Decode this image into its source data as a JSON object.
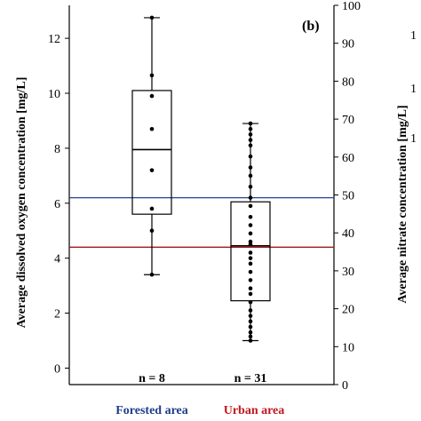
{
  "chart_data": {
    "type": "box",
    "panel_label": "(b)",
    "y_left": {
      "label": "Average dissolved oxygen concentration [mg/L]",
      "range": [
        -0.6,
        13.2
      ],
      "ticks": [
        0,
        2,
        4,
        6,
        8,
        10,
        12
      ]
    },
    "y_right": {
      "label": "Average nitrate concentration [mg/L]",
      "range": [
        0,
        100
      ],
      "ticks": [
        0,
        10,
        20,
        30,
        40,
        50,
        60,
        70,
        80,
        90,
        100
      ]
    },
    "categories": [
      {
        "name": "Forested area",
        "color": "#1f3c8c"
      },
      {
        "name": "Urban area",
        "color": "#c0171e"
      }
    ],
    "boxes": [
      {
        "category": "Forested area",
        "n_label": "n = 8",
        "whisker_low": 3.4,
        "q1": 5.6,
        "median": 7.95,
        "q3": 10.1,
        "whisker_high": 12.75,
        "points": [
          12.75,
          10.65,
          9.9,
          8.7,
          7.2,
          5.8,
          5.0,
          3.4
        ]
      },
      {
        "category": "Urban area",
        "n_label": "n = 31",
        "whisker_low": 1.0,
        "q1": 2.45,
        "median": 4.45,
        "q3": 6.05,
        "whisker_high": 8.9,
        "points": [
          8.9,
          8.7,
          8.5,
          8.3,
          8.1,
          7.7,
          7.3,
          7.0,
          6.6,
          6.2,
          5.9,
          5.5,
          5.2,
          4.9,
          4.6,
          4.5,
          4.2,
          4.0,
          3.8,
          3.5,
          3.2,
          2.9,
          2.7,
          2.4,
          2.1,
          1.9,
          1.7,
          1.5,
          1.3,
          1.15,
          1.0
        ]
      }
    ],
    "reference_lines": [
      {
        "axis": "left",
        "value": 6.2,
        "color": "#2a3f94"
      },
      {
        "axis": "left",
        "value": 4.4,
        "color": "#a21a1e"
      }
    ],
    "neighbor_fragment_ticks": [
      "1",
      "1",
      "1"
    ]
  }
}
